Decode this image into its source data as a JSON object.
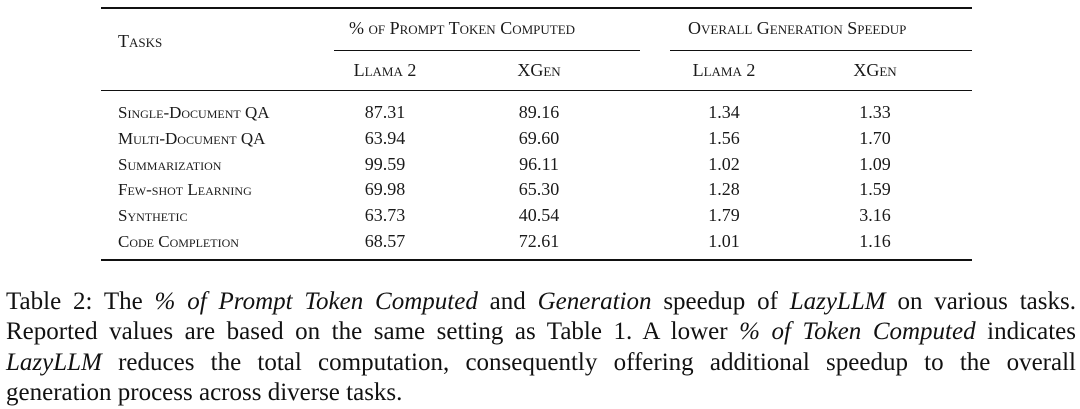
{
  "table": {
    "header": {
      "tasks": "Tasks",
      "group1": "% of Prompt Token Computed",
      "group2": "Overall Generation Speedup",
      "sub": [
        "Llama 2",
        "XGen",
        "Llama 2",
        "XGen"
      ]
    },
    "rows": [
      {
        "task": "Single-Document QA",
        "values": [
          "87.31",
          "89.16",
          "1.34",
          "1.33"
        ]
      },
      {
        "task": "Multi-Document QA",
        "values": [
          "63.94",
          "69.60",
          "1.56",
          "1.70"
        ]
      },
      {
        "task": "Summarization",
        "values": [
          "99.59",
          "96.11",
          "1.02",
          "1.09"
        ]
      },
      {
        "task": "Few-shot Learning",
        "values": [
          "69.98",
          "65.30",
          "1.28",
          "1.59"
        ]
      },
      {
        "task": "Synthetic",
        "values": [
          "63.73",
          "40.54",
          "1.79",
          "3.16"
        ]
      },
      {
        "task": "Code Completion",
        "values": [
          "68.57",
          "72.61",
          "1.01",
          "1.16"
        ]
      }
    ]
  },
  "caption": {
    "label": "Table 2: The ",
    "pct_prompt": "% of Prompt Token Computed",
    "and": " and ",
    "generation": "Generation",
    "speedup_of": " speedup of ",
    "lazyllm": "LazyLLM",
    "rest1": " on various tasks. Reported values are based on the same setting as Table 1. A lower ",
    "pct_token": "% of Token Computed",
    "indicates": " indicates ",
    "lazyllm2": "LazyLLM",
    "rest2": " reduces the total computation, consequently offering additional speedup to the overall generation process across diverse tasks."
  }
}
